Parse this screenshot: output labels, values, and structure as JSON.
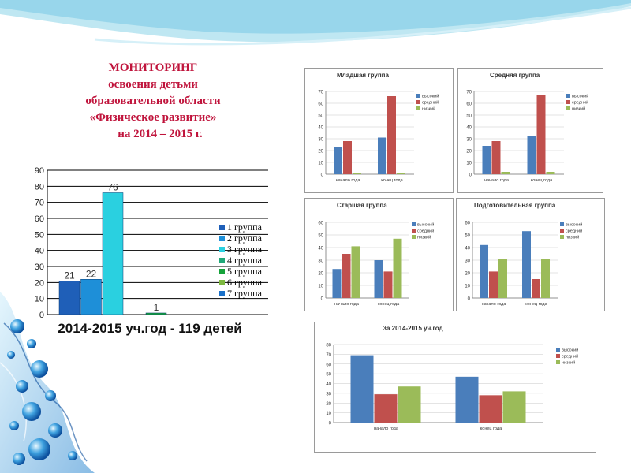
{
  "slide": {
    "title_lines": [
      "МОНИТОРИНГ",
      "освоения детьми",
      "образовательной области",
      "«Физическое развитие»",
      "на 2014 – 2015 г."
    ]
  },
  "main_chart": {
    "caption": "2014-2015 уч.год - 119 детей"
  },
  "colors": {
    "high": "#4a7ebb",
    "mid": "#c0504d",
    "low": "#9bbb59",
    "title": "#c0143c"
  },
  "chart_data": [
    {
      "id": "main",
      "type": "bar",
      "ylim": [
        0,
        90
      ],
      "yticks": [
        0,
        10,
        20,
        30,
        40,
        50,
        60,
        70,
        80,
        90
      ],
      "grid": true,
      "legend": "right",
      "series": [
        {
          "name": "1 группа",
          "value": 21,
          "color": "#1f5fb8",
          "label": "21"
        },
        {
          "name": "2 группа",
          "value": 22,
          "color": "#1e8fd8",
          "label": "22"
        },
        {
          "name": "3 группа",
          "value": 76,
          "color": "#2ad0e0",
          "label": "76"
        },
        {
          "name": "4 группа",
          "value": 0,
          "color": "#20a878",
          "label": ""
        },
        {
          "name": "5 группа",
          "value": 1,
          "color": "#15a23a",
          "label": "1"
        },
        {
          "name": "6 группа",
          "value": 0,
          "color": "#7db840",
          "label": ""
        },
        {
          "name": "7 группа",
          "value": 0,
          "color": "#1a70c8",
          "label": ""
        }
      ]
    },
    {
      "id": "mladshaya",
      "type": "bar",
      "title": "Младшая группа",
      "categories": [
        "начало года",
        "конец года"
      ],
      "ylim": [
        0,
        70
      ],
      "yticks": [
        0,
        10,
        20,
        30,
        40,
        50,
        60,
        70
      ],
      "legend": "top-right",
      "series": [
        {
          "name": "высокий",
          "values": [
            23,
            31
          ]
        },
        {
          "name": "средний",
          "values": [
            28,
            66
          ]
        },
        {
          "name": "низкий",
          "values": [
            1,
            1
          ]
        }
      ]
    },
    {
      "id": "srednyaya",
      "type": "bar",
      "title": "Средняя группа",
      "categories": [
        "начало года",
        "конец года"
      ],
      "ylim": [
        0,
        70
      ],
      "yticks": [
        0,
        10,
        20,
        30,
        40,
        50,
        60,
        70
      ],
      "legend": "top-right",
      "series": [
        {
          "name": "высокий",
          "values": [
            24,
            32
          ]
        },
        {
          "name": "средний",
          "values": [
            28,
            67
          ]
        },
        {
          "name": "низкий",
          "values": [
            2,
            2
          ]
        }
      ]
    },
    {
      "id": "starshaya",
      "type": "bar",
      "title": "Старшая группа",
      "categories": [
        "начало года",
        "конец года"
      ],
      "ylim": [
        0,
        60
      ],
      "yticks": [
        0,
        10,
        20,
        30,
        40,
        50,
        60
      ],
      "legend": "top-right",
      "series": [
        {
          "name": "высокий",
          "values": [
            23,
            30
          ]
        },
        {
          "name": "средний",
          "values": [
            35,
            21
          ]
        },
        {
          "name": "низкий",
          "values": [
            41,
            47
          ]
        }
      ]
    },
    {
      "id": "podgotovitelnaya",
      "type": "bar",
      "title": "Подготовительная группа",
      "categories": [
        "начало года",
        "конец года"
      ],
      "ylim": [
        0,
        60
      ],
      "yticks": [
        0,
        10,
        20,
        30,
        40,
        50,
        60
      ],
      "legend": "top-right",
      "series": [
        {
          "name": "высокий",
          "values": [
            42,
            53
          ]
        },
        {
          "name": "средний",
          "values": [
            21,
            15
          ]
        },
        {
          "name": "низкий",
          "values": [
            31,
            31
          ]
        }
      ]
    },
    {
      "id": "total",
      "type": "bar",
      "title": "За 2014-2015 уч.год",
      "categories": [
        "начало года",
        "конец года"
      ],
      "ylim": [
        0,
        80
      ],
      "yticks": [
        0,
        10,
        20,
        30,
        40,
        50,
        60,
        70,
        80
      ],
      "legend": "top-right",
      "series": [
        {
          "name": "высокий",
          "values": [
            69,
            47
          ]
        },
        {
          "name": "средний",
          "values": [
            29,
            28
          ]
        },
        {
          "name": "низкий",
          "values": [
            37,
            32
          ]
        }
      ]
    }
  ]
}
